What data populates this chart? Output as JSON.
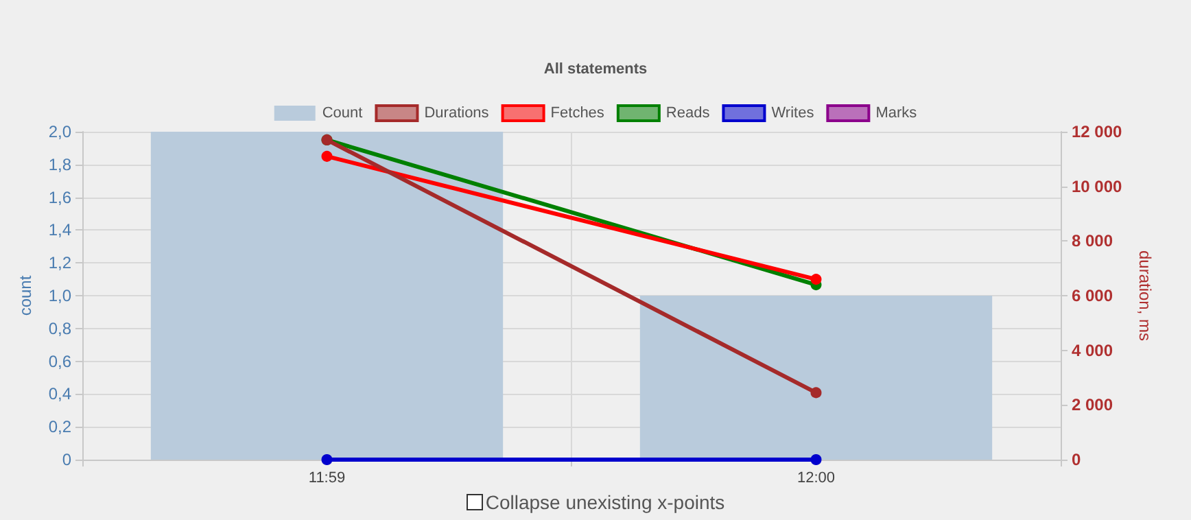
{
  "chart_data": {
    "type": "bar",
    "title": "All statements",
    "categories": [
      "11:59",
      "12:00"
    ],
    "series": [
      {
        "name": "Count",
        "color": "#b9cbdc",
        "values": [
          2,
          1
        ]
      },
      {
        "name": "Durations",
        "type": "line",
        "axis": "y2",
        "color": "#a52a2a",
        "values": [
          11700,
          2450
        ]
      },
      {
        "name": "Fetches",
        "type": "line",
        "axis": "y2",
        "color": "#ff0000",
        "values": [
          11100,
          6600
        ]
      },
      {
        "name": "Reads",
        "type": "line",
        "axis": "y2",
        "color": "#008000",
        "values": [
          11700,
          6400
        ]
      },
      {
        "name": "Writes",
        "type": "line",
        "axis": "y2",
        "color": "#0000cd",
        "values": [
          0,
          0
        ]
      },
      {
        "name": "Marks",
        "type": "line",
        "axis": "y2",
        "color": "#8b008b",
        "values": [
          null,
          null
        ]
      }
    ],
    "ylabel": "count",
    "y2label": "duration, ms",
    "ylim": [
      0,
      2
    ],
    "yticks": [
      {
        "value": 0,
        "label": "0"
      },
      {
        "value": 0.2,
        "label": "0,2"
      },
      {
        "value": 0.4,
        "label": "0,4"
      },
      {
        "value": 0.6,
        "label": "0,6"
      },
      {
        "value": 0.8,
        "label": "0,8"
      },
      {
        "value": 1,
        "label": "1,0"
      },
      {
        "value": 1.2,
        "label": "1,2"
      },
      {
        "value": 1.4,
        "label": "1,4"
      },
      {
        "value": 1.6,
        "label": "1,6"
      },
      {
        "value": 1.8,
        "label": "1,8"
      },
      {
        "value": 2,
        "label": "2,0"
      }
    ],
    "y2lim": [
      0,
      12000
    ],
    "y2ticks": [
      0,
      {
        "value": 2000,
        "label": "2 000"
      },
      {
        "value": 4000,
        "label": "4 000"
      },
      {
        "value": 6000,
        "label": "6 000"
      },
      {
        "value": 8000,
        "label": "8 000"
      },
      {
        "value": 10000,
        "label": "10 000"
      },
      {
        "value": 12000,
        "label": "12 000"
      }
    ],
    "grid": true,
    "legend": "top",
    "marker": "circle",
    "line_style": "solid",
    "annotations": [
      "Collapse unexisting x-points"
    ]
  }
}
